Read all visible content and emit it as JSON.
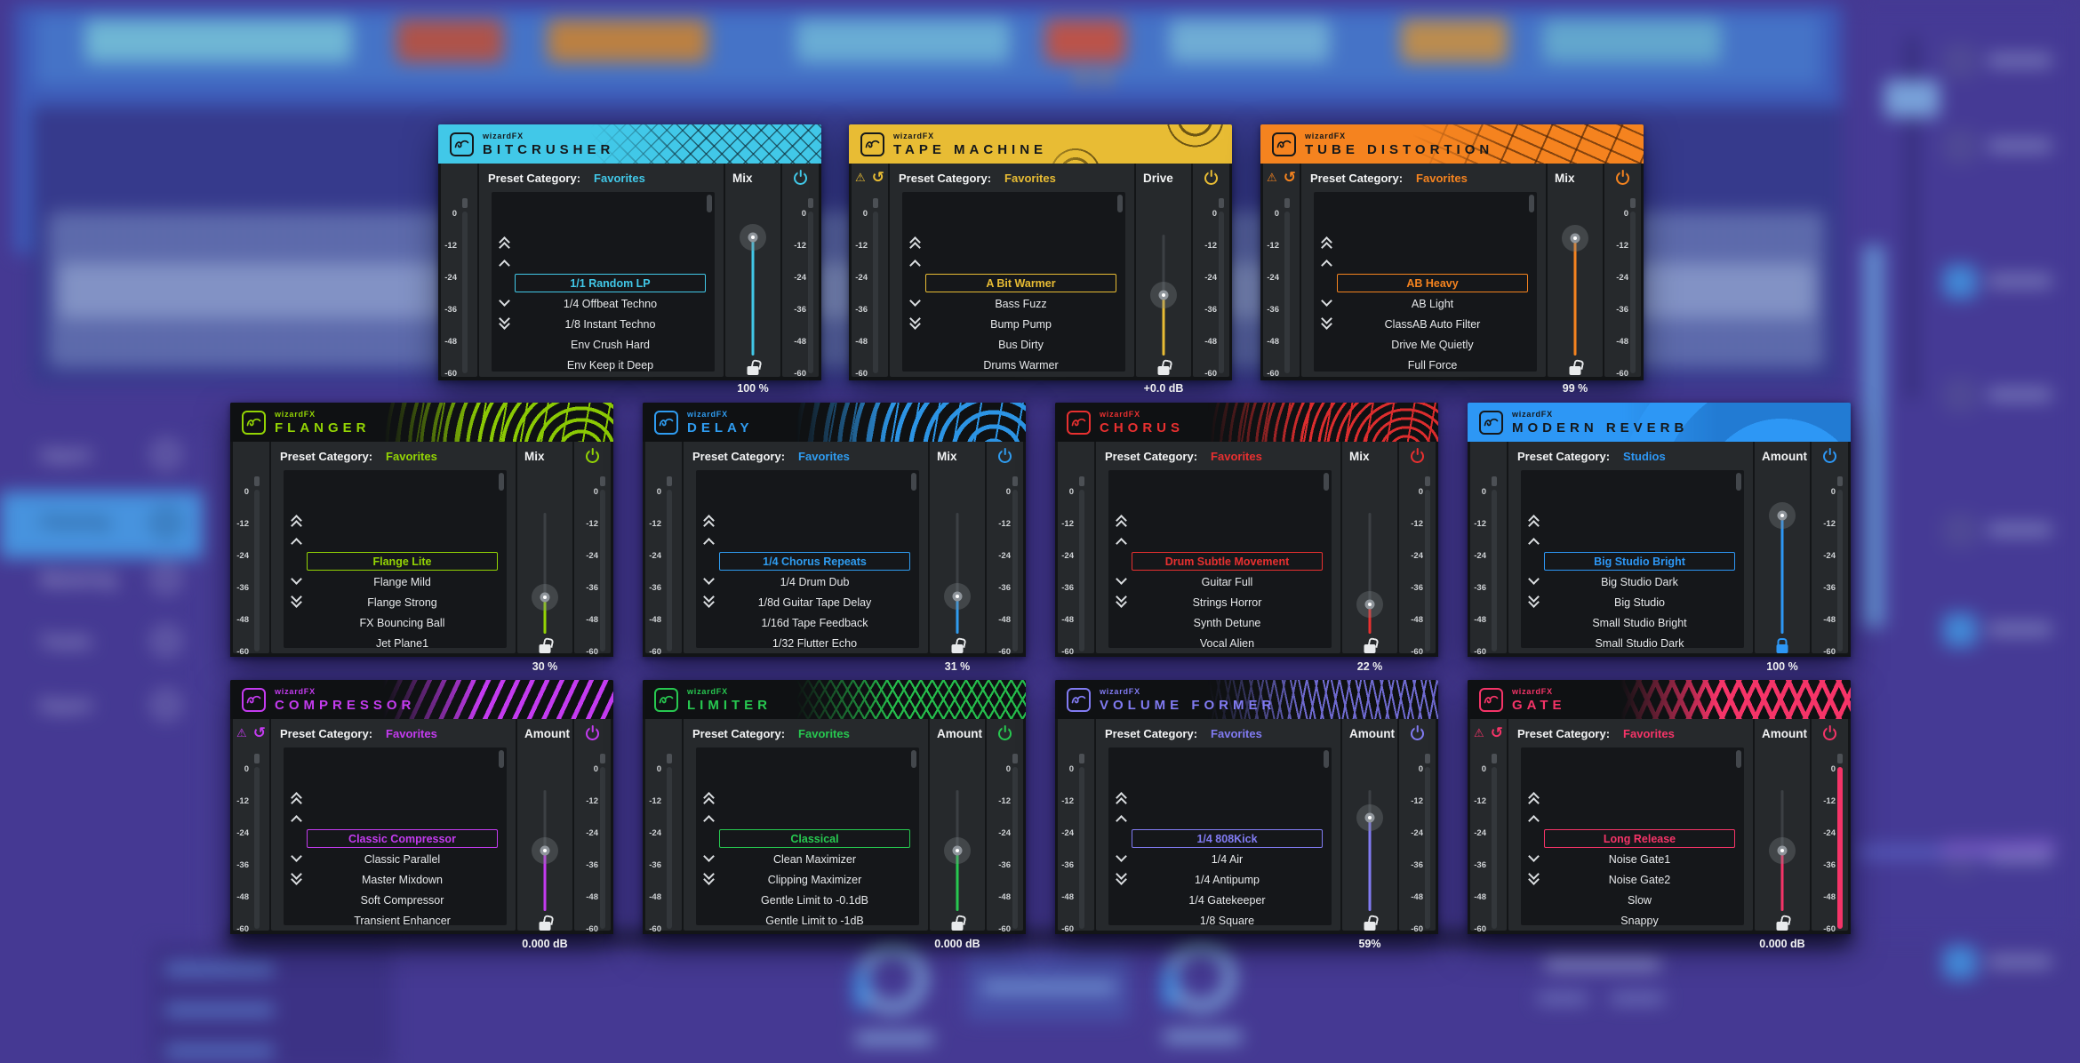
{
  "shared": {
    "brand": "wizardFX",
    "preset_category_label": "Preset Category:"
  },
  "meter_scale": [
    "0",
    "-12",
    "-24",
    "-36",
    "-48",
    "-60"
  ],
  "plugins": [
    {
      "id": "bitcrusher",
      "name": "BITCRUSHER",
      "accent": "#41C8E8",
      "header": "solid",
      "deco": "circuit",
      "warning_icons": false,
      "category": "Favorites",
      "presets": [
        "1/1 Random LP",
        "1/4 Offbeat Techno",
        "1/8 Instant Techno",
        "Env Crush Hard",
        "Env Keep it Deep"
      ],
      "selected_index": 0,
      "slider": {
        "label": "Mix",
        "value": "100 %",
        "knob_pos": 0.02,
        "locked": false
      },
      "output_meter_signal": false
    },
    {
      "id": "tape-machine",
      "name": "TAPE MACHINE",
      "accent": "#E8BC34",
      "header": "solid",
      "deco": "reels",
      "warning_icons": true,
      "category": "Favorites",
      "presets": [
        "A Bit Warmer",
        "Bass Fuzz",
        "Bump Pump",
        "Bus Dirty",
        "Drums Warmer"
      ],
      "selected_index": 0,
      "slider": {
        "label": "Drive",
        "value": "+0.0 dB",
        "knob_pos": 0.5,
        "locked": false
      },
      "output_meter_signal": false
    },
    {
      "id": "tube-distortion",
      "name": "TUBE DISTORTION",
      "accent": "#F5831F",
      "header": "solid",
      "deco": "tube",
      "warning_icons": true,
      "category": "Favorites",
      "presets": [
        "AB Heavy",
        "AB Light",
        "ClassAB Auto Filter",
        "Drive Me Quietly",
        "Full Force"
      ],
      "selected_index": 0,
      "slider": {
        "label": "Mix",
        "value": "99 %",
        "knob_pos": 0.03,
        "locked": false
      },
      "output_meter_signal": false
    },
    {
      "id": "flanger",
      "name": "FLANGER",
      "accent": "#93D404",
      "header": "dark",
      "deco": "rings",
      "warning_icons": false,
      "category": "Favorites",
      "presets": [
        "Flange Lite",
        "Flange Mild",
        "Flange Strong",
        "FX Bouncing Ball",
        "Jet Plane1"
      ],
      "selected_index": 0,
      "slider": {
        "label": "Mix",
        "value": "30 %",
        "knob_pos": 0.7,
        "locked": false
      },
      "output_meter_signal": false
    },
    {
      "id": "delay",
      "name": "DELAY",
      "accent": "#2F9CF0",
      "header": "dark",
      "deco": "rings",
      "warning_icons": false,
      "category": "Favorites",
      "presets": [
        "1/4 Chorus Repeats",
        "1/4 Drum Dub",
        "1/8d Guitar Tape Delay",
        "1/16d Tape Feedback",
        "1/32 Flutter Echo"
      ],
      "selected_index": 0,
      "slider": {
        "label": "Mix",
        "value": "31 %",
        "knob_pos": 0.69,
        "locked": false
      },
      "output_meter_signal": false
    },
    {
      "id": "chorus",
      "name": "CHORUS",
      "accent": "#E83030",
      "header": "dark",
      "deco": "rings",
      "warning_icons": false,
      "category": "Favorites",
      "presets": [
        "Drum Subtle Movement",
        "Guitar Full",
        "Strings Horror",
        "Synth Detune",
        "Vocal Alien"
      ],
      "selected_index": 0,
      "slider": {
        "label": "Mix",
        "value": "22 %",
        "knob_pos": 0.76,
        "locked": false
      },
      "output_meter_signal": false
    },
    {
      "id": "modern-reverb",
      "name": "MODERN REVERB",
      "accent": "#2D97F5",
      "header": "solid",
      "deco": "arcs",
      "warning_icons": false,
      "category": "Studios",
      "presets": [
        "Big Studio Bright",
        "Big Studio Dark",
        "Big Studio",
        "Small Studio Bright",
        "Small Studio Dark"
      ],
      "selected_index": 0,
      "slider": {
        "label": "Amount",
        "value": "100 %",
        "knob_pos": 0.02,
        "locked": true
      },
      "output_meter_signal": false
    },
    {
      "id": "compressor",
      "name": "COMPRESSOR",
      "accent": "#C43BF0",
      "header": "dark",
      "deco": "stripes",
      "warning_icons": true,
      "category": "Favorites",
      "presets": [
        "Classic Compressor",
        "Classic Parallel",
        "Master Mixdown",
        "Soft Compressor",
        "Transient Enhancer"
      ],
      "selected_index": 0,
      "slider": {
        "label": "Amount",
        "value": "0.000 dB",
        "knob_pos": 0.5,
        "locked": false
      },
      "output_meter_signal": false
    },
    {
      "id": "limiter",
      "name": "LIMITER",
      "accent": "#27C850",
      "header": "dark",
      "deco": "lines",
      "warning_icons": false,
      "category": "Favorites",
      "presets": [
        "Classical",
        "Clean Maximizer",
        "Clipping Maximizer",
        "Gentle Limit to -0.1dB",
        "Gentle Limit to -1dB"
      ],
      "selected_index": 0,
      "slider": {
        "label": "Amount",
        "value": "0.000 dB",
        "knob_pos": 0.5,
        "locked": false
      },
      "output_meter_signal": false
    },
    {
      "id": "volume-former",
      "name": "VOLUME FORMER",
      "accent": "#817BF2",
      "header": "dark",
      "deco": "waves",
      "warning_icons": false,
      "category": "Favorites",
      "presets": [
        "1/4 808Kick",
        "1/4 Air",
        "1/4 Antipump",
        "1/4 Gatekeeper",
        "1/8 Square"
      ],
      "selected_index": 0,
      "slider": {
        "label": "Amount",
        "value": "59%",
        "knob_pos": 0.23,
        "locked": false
      },
      "output_meter_signal": false
    },
    {
      "id": "gate",
      "name": "GATE",
      "accent": "#F53468",
      "header": "dark",
      "deco": "stripes-cross",
      "warning_icons": true,
      "category": "Favorites",
      "presets": [
        "Long Release",
        "Noise Gate1",
        "Noise Gate2",
        "Slow",
        "Snappy"
      ],
      "selected_index": 0,
      "slider": {
        "label": "Amount",
        "value": "0.000 dB",
        "knob_pos": 0.5,
        "locked": false
      },
      "output_meter_signal": true
    }
  ],
  "background": {
    "sidebar": {
      "items": [
        "Import",
        "Cleaning",
        "Mastering",
        "Tracks",
        "Export"
      ],
      "active_item": "Cleaning",
      "active_color": "#4DA4F2"
    }
  }
}
